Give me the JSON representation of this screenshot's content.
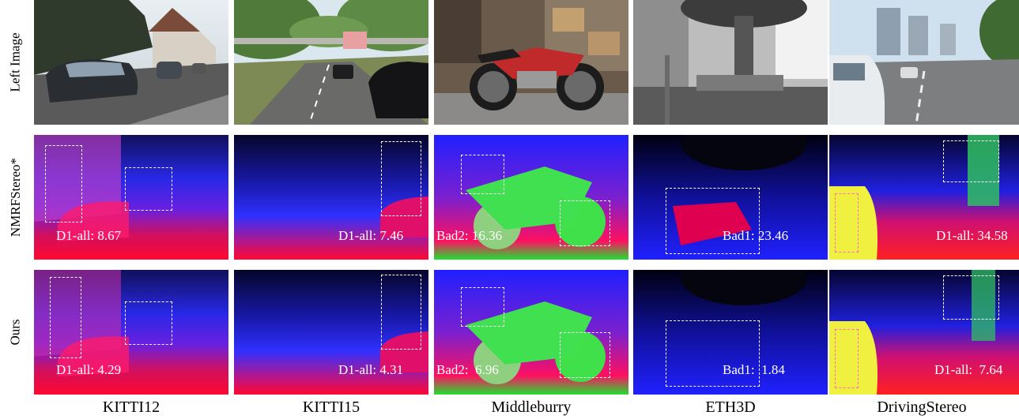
{
  "row_labels": [
    "Left Image",
    "NMRFStereo*",
    "Ours"
  ],
  "columns": [
    {
      "name": "KITTI12",
      "nmrf_metric": "D1-all: 8.67",
      "ours_metric": "D1-all: 4.29"
    },
    {
      "name": "KITTI15",
      "nmrf_metric": "D1-all: 7.46",
      "ours_metric": "D1-all: 4.31"
    },
    {
      "name": "Middleburry",
      "nmrf_metric": "Bad2: 16.36",
      "ours_metric": "Bad2:  6.96"
    },
    {
      "name": "ETH3D",
      "nmrf_metric": "Bad1: 23.46",
      "ours_metric": "Bad1:  1.84"
    },
    {
      "name": "DrivingStereo",
      "nmrf_metric": "D1-all: 34.58",
      "ours_metric": "D1-all:  7.64"
    }
  ]
}
